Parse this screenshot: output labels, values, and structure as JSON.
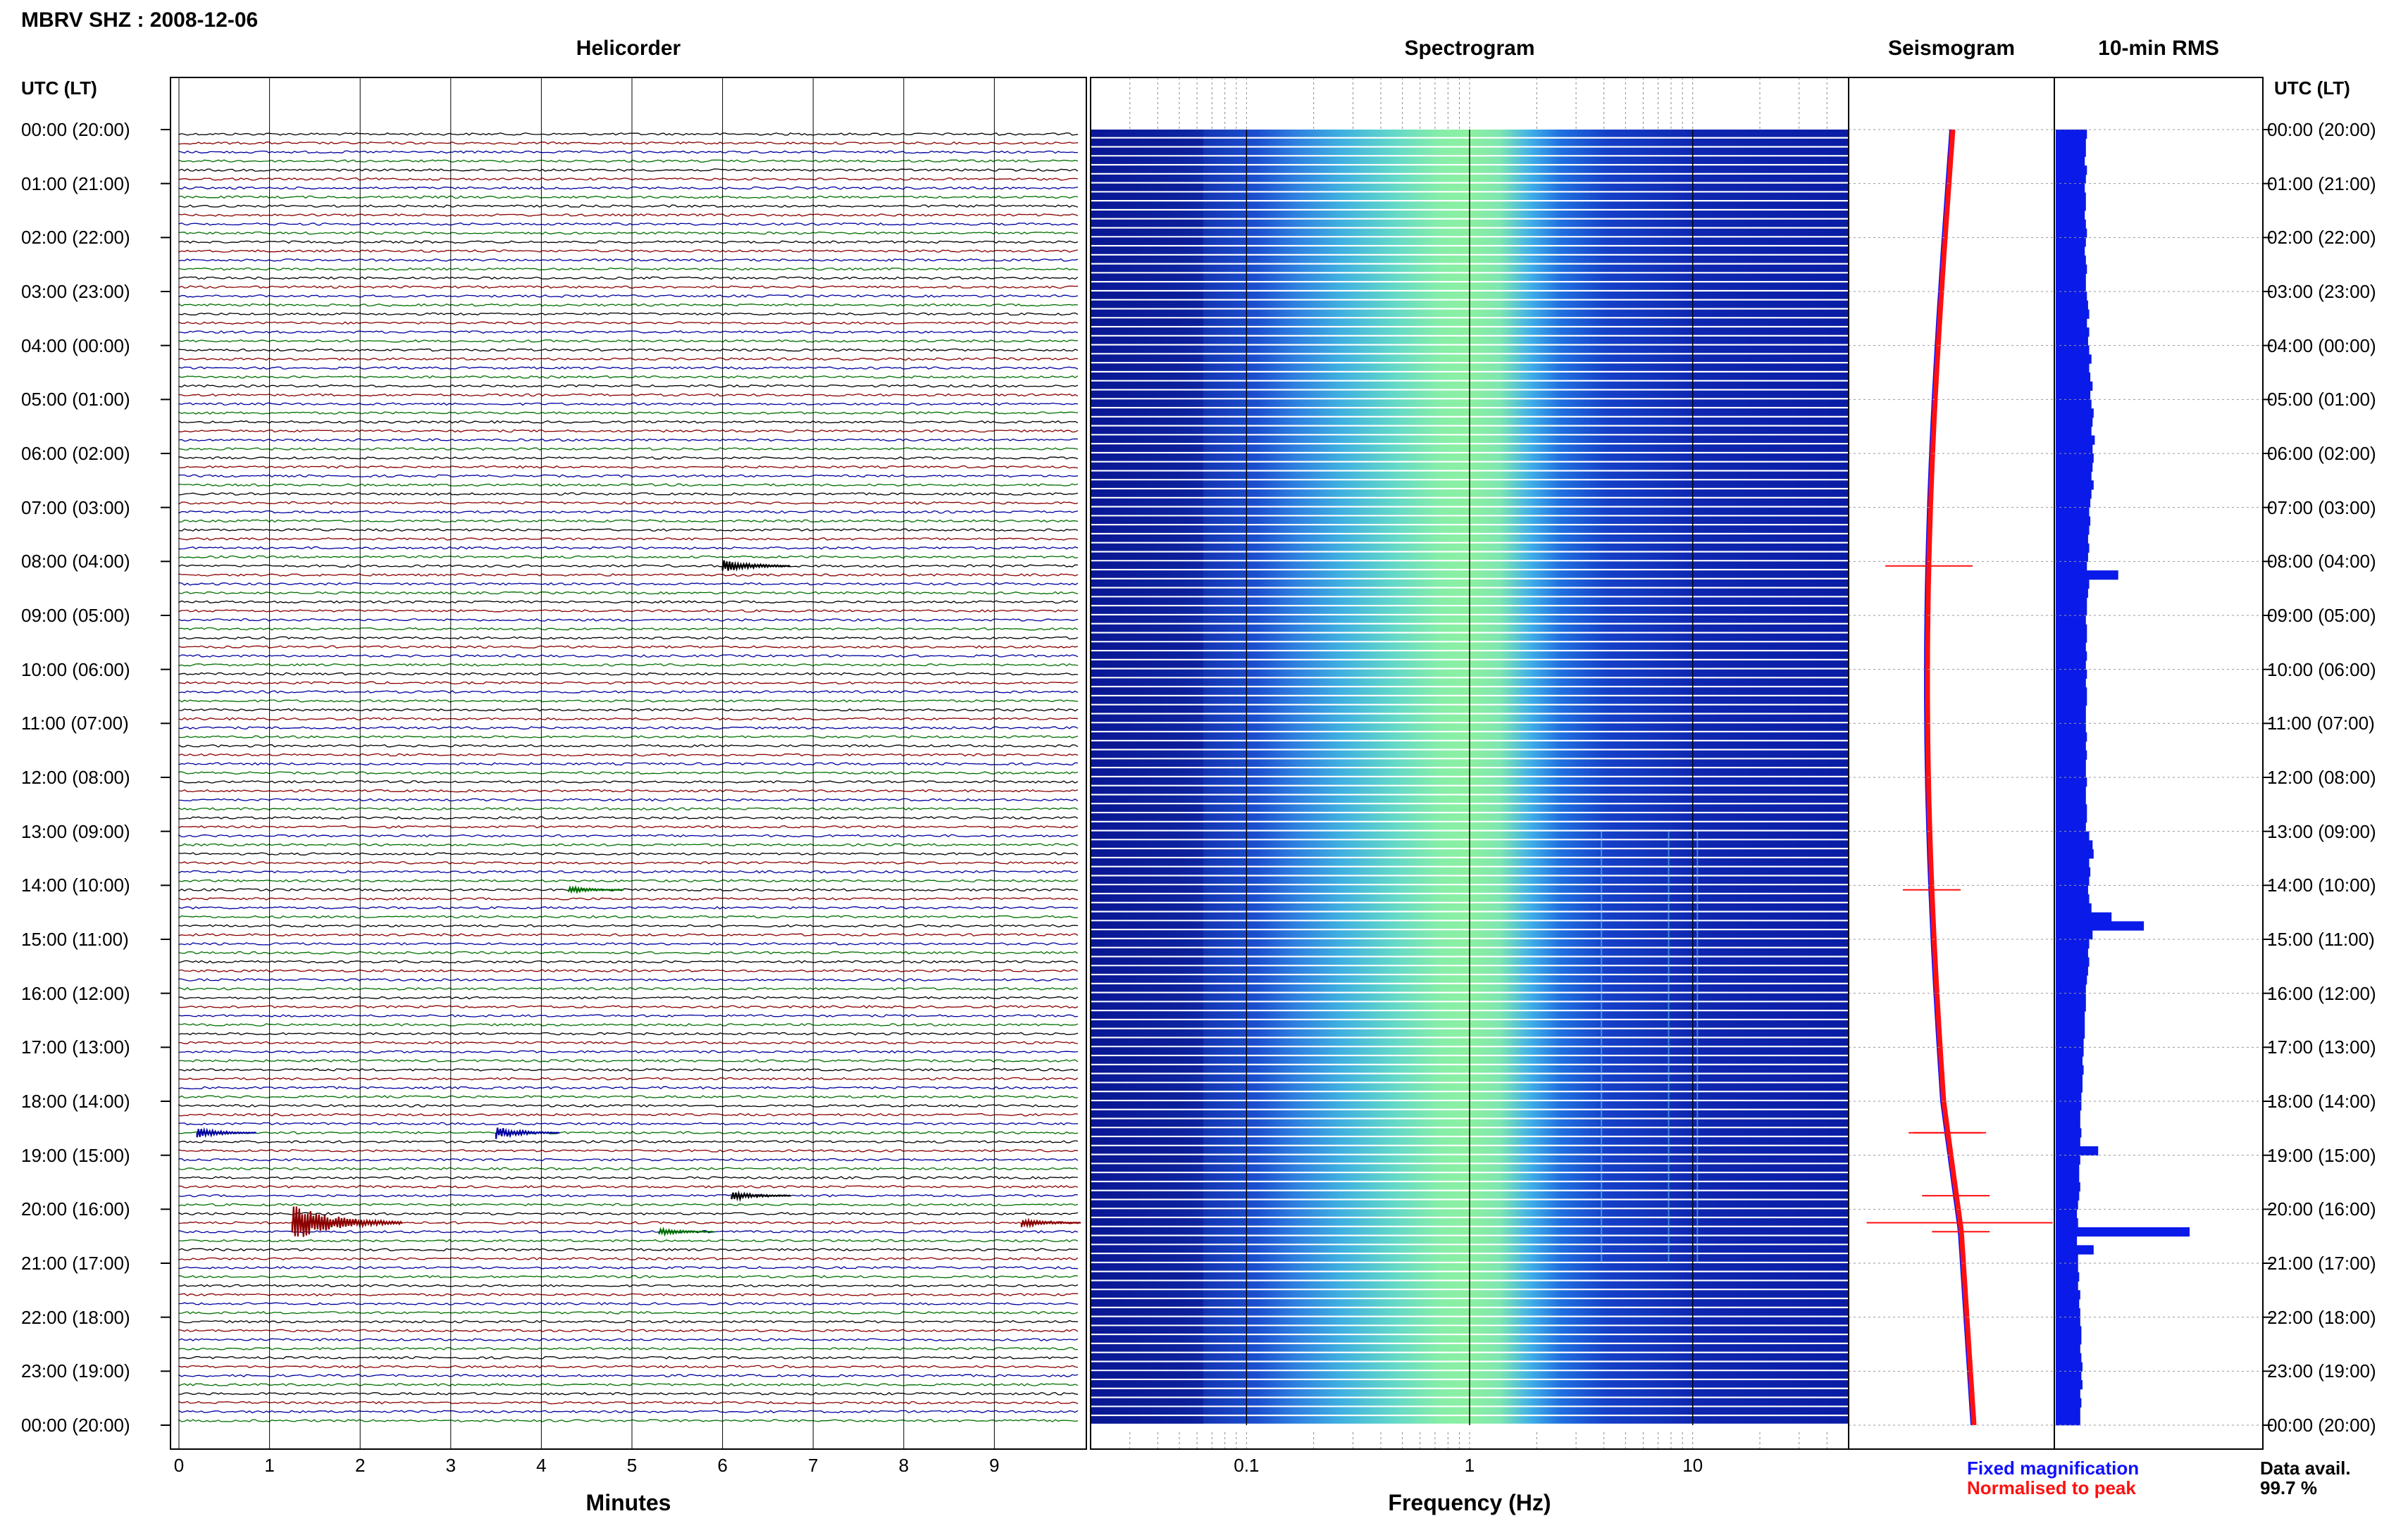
{
  "header": {
    "station_title": "MBRV SHZ : 2008-12-06",
    "tz_label_left": "UTC (LT)",
    "tz_label_right": "UTC (LT)"
  },
  "panels": {
    "helicorder": "Helicorder",
    "spectrogram": "Spectrogram",
    "seismogram": "Seismogram",
    "rms": "10-min RMS"
  },
  "time_labels": [
    "00:00 (20:00)",
    "01:00 (21:00)",
    "02:00 (22:00)",
    "03:00 (23:00)",
    "04:00 (00:00)",
    "05:00 (01:00)",
    "06:00 (02:00)",
    "07:00 (03:00)",
    "08:00 (04:00)",
    "09:00 (05:00)",
    "10:00 (06:00)",
    "11:00 (07:00)",
    "12:00 (08:00)",
    "13:00 (09:00)",
    "14:00 (10:00)",
    "15:00 (11:00)",
    "16:00 (12:00)",
    "17:00 (13:00)",
    "18:00 (14:00)",
    "19:00 (15:00)",
    "20:00 (16:00)",
    "21:00 (17:00)",
    "22:00 (18:00)",
    "23:00 (19:00)",
    "00:00 (20:00)"
  ],
  "axes": {
    "minutes_title": "Minutes",
    "minutes_ticks": [
      "0",
      "1",
      "2",
      "3",
      "4",
      "5",
      "6",
      "7",
      "8",
      "9"
    ],
    "frequency_title": "Frequency (Hz)",
    "frequency_ticks": [
      "0.1",
      "1",
      "10"
    ]
  },
  "legend": {
    "fixed": "Fixed magnification",
    "normalised": "Normalised to peak",
    "fixed_color": "#1010ff",
    "normalised_color": "#ff1010"
  },
  "data_availability": {
    "label": "Data avail.",
    "value": "99.7 %"
  },
  "colors": {
    "trace_cycle": [
      "#000000",
      "#8b0000",
      "#0000a0",
      "#007000"
    ],
    "spectrogram_low": "#0a1aa0",
    "spectrogram_peak": "#7de8a0",
    "rms_bar": "#0a1ae8"
  },
  "chart_data": [
    {
      "type": "line",
      "name": "helicorder",
      "xlabel": "Minutes",
      "xlim": [
        0,
        10
      ],
      "rows_per_hour": 6,
      "events": [
        {
          "hour": 8,
          "row": 0,
          "minute": 6.0,
          "amplitude": 0.6,
          "color_index": 0
        },
        {
          "hour": 14,
          "row": 0,
          "minute": 4.3,
          "amplitude": 0.3,
          "color_index": 3
        },
        {
          "hour": 18,
          "row": 3,
          "minute": 0.2,
          "amplitude": 0.4,
          "color_index": 2
        },
        {
          "hour": 18,
          "row": 3,
          "minute": 3.5,
          "amplitude": 0.5,
          "color_index": 2
        },
        {
          "hour": 19,
          "row": 4,
          "minute": 6.1,
          "amplitude": 0.4,
          "color_index": 0
        },
        {
          "hour": 20,
          "row": 1,
          "minute": 1.25,
          "amplitude": 1.6,
          "color_index": 1
        },
        {
          "hour": 20,
          "row": 1,
          "minute": 9.3,
          "amplitude": 0.4,
          "color_index": 1
        },
        {
          "hour": 20,
          "row": 2,
          "minute": 5.3,
          "amplitude": 0.3,
          "color_index": 3
        }
      ]
    },
    {
      "type": "heatmap",
      "name": "spectrogram",
      "xlabel": "Frequency (Hz)",
      "x_scale": "log",
      "xlim": [
        0.02,
        50
      ],
      "peak_frequency_hz": 0.9,
      "line_features_hz": [
        3.9,
        7.8,
        10.5
      ]
    },
    {
      "type": "line",
      "name": "seismogram",
      "series": [
        {
          "name": "Fixed magnification"
        },
        {
          "name": "Normalised to peak"
        }
      ]
    },
    {
      "type": "bar",
      "name": "10-min RMS",
      "orientation": "horizontal",
      "values": [
        0.28,
        0.27,
        0.27,
        0.26,
        0.28,
        0.27,
        0.26,
        0.27,
        0.27,
        0.26,
        0.27,
        0.28,
        0.27,
        0.26,
        0.27,
        0.28,
        0.27,
        0.27,
        0.28,
        0.29,
        0.3,
        0.28,
        0.3,
        0.29,
        0.3,
        0.32,
        0.3,
        0.31,
        0.33,
        0.31,
        0.32,
        0.34,
        0.33,
        0.32,
        0.35,
        0.33,
        0.34,
        0.33,
        0.32,
        0.34,
        0.32,
        0.31,
        0.3,
        0.31,
        0.3,
        0.29,
        0.3,
        0.29,
        0.28,
        0.56,
        0.3,
        0.29,
        0.28,
        0.28,
        0.27,
        0.28,
        0.28,
        0.27,
        0.28,
        0.27,
        0.28,
        0.27,
        0.28,
        0.28,
        0.27,
        0.27,
        0.27,
        0.28,
        0.27,
        0.28,
        0.27,
        0.27,
        0.28,
        0.27,
        0.27,
        0.28,
        0.28,
        0.27,
        0.3,
        0.33,
        0.34,
        0.3,
        0.31,
        0.3,
        0.29,
        0.3,
        0.32,
        0.5,
        0.79,
        0.33,
        0.3,
        0.29,
        0.3,
        0.29,
        0.28,
        0.27,
        0.27,
        0.27,
        0.26,
        0.26,
        0.26,
        0.25,
        0.25,
        0.24,
        0.25,
        0.24,
        0.24,
        0.23,
        0.23,
        0.22,
        0.22,
        0.23,
        0.22,
        0.38,
        0.22,
        0.21,
        0.21,
        0.22,
        0.21,
        0.2,
        0.19,
        0.2,
        1.2,
        0.19,
        0.34,
        0.2,
        0.2,
        0.21,
        0.2,
        0.22,
        0.21,
        0.22,
        0.22,
        0.23,
        0.23,
        0.22,
        0.23,
        0.24,
        0.23,
        0.24,
        0.22,
        0.23,
        0.22,
        0.22
      ]
    }
  ]
}
